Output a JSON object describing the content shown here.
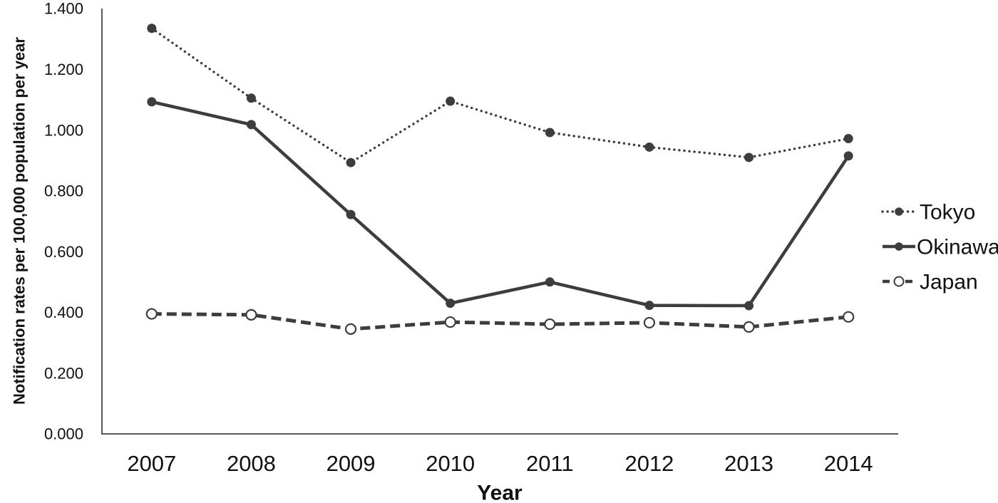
{
  "chart_data": {
    "type": "line",
    "title": "",
    "xlabel": "Year",
    "ylabel": "Notification rates per 100,000 population per year",
    "categories": [
      "2007",
      "2008",
      "2009",
      "2010",
      "2011",
      "2012",
      "2013",
      "2014"
    ],
    "ylim": [
      0.0,
      1.4
    ],
    "ytick_step": 0.2,
    "ytick_labels": [
      "0.000",
      "0.200",
      "0.400",
      "0.600",
      "0.800",
      "1.000",
      "1.200",
      "1.400"
    ],
    "grid": false,
    "legend_position": "right",
    "series": [
      {
        "name": "Tokyo",
        "line_style": "dotted",
        "marker": "filled-circle",
        "values": [
          1.335,
          1.105,
          0.893,
          1.095,
          0.992,
          0.944,
          0.91,
          0.972
        ]
      },
      {
        "name": "Okinawa",
        "line_style": "solid",
        "marker": "filled-circle",
        "values": [
          1.093,
          1.018,
          0.722,
          0.43,
          0.5,
          0.423,
          0.422,
          0.915
        ]
      },
      {
        "name": "Japan",
        "line_style": "dashed",
        "marker": "open-circle",
        "values": [
          0.395,
          0.392,
          0.345,
          0.368,
          0.361,
          0.366,
          0.352,
          0.385
        ]
      }
    ],
    "colors": {
      "series": "#3d3d3d",
      "axis": "#595959",
      "text": "#111111",
      "marker_open_fill": "#ffffff"
    }
  }
}
